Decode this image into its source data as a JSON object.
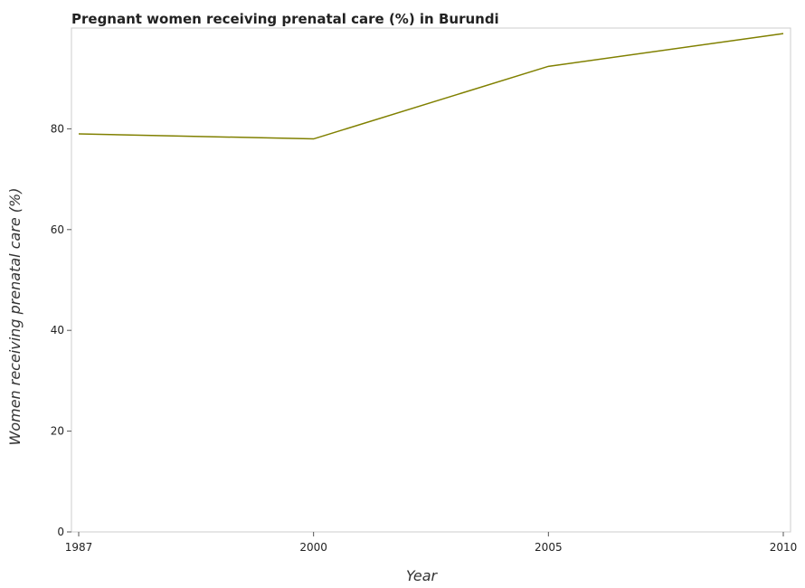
{
  "chart_data": {
    "type": "line",
    "title": "Pregnant women receiving prenatal care (%) in Burundi",
    "xlabel": "Year",
    "ylabel": "Women receiving prenatal care (%)",
    "categories": [
      "1987",
      "2000",
      "2005",
      "2010"
    ],
    "series": [
      {
        "values": [
          79.0,
          78.0,
          92.4,
          98.9
        ],
        "color": "#808000"
      }
    ],
    "ylim": [
      0,
      100
    ],
    "yticks": [
      "0",
      "20",
      "40",
      "60",
      "80"
    ],
    "grid": false,
    "legend": "none"
  }
}
